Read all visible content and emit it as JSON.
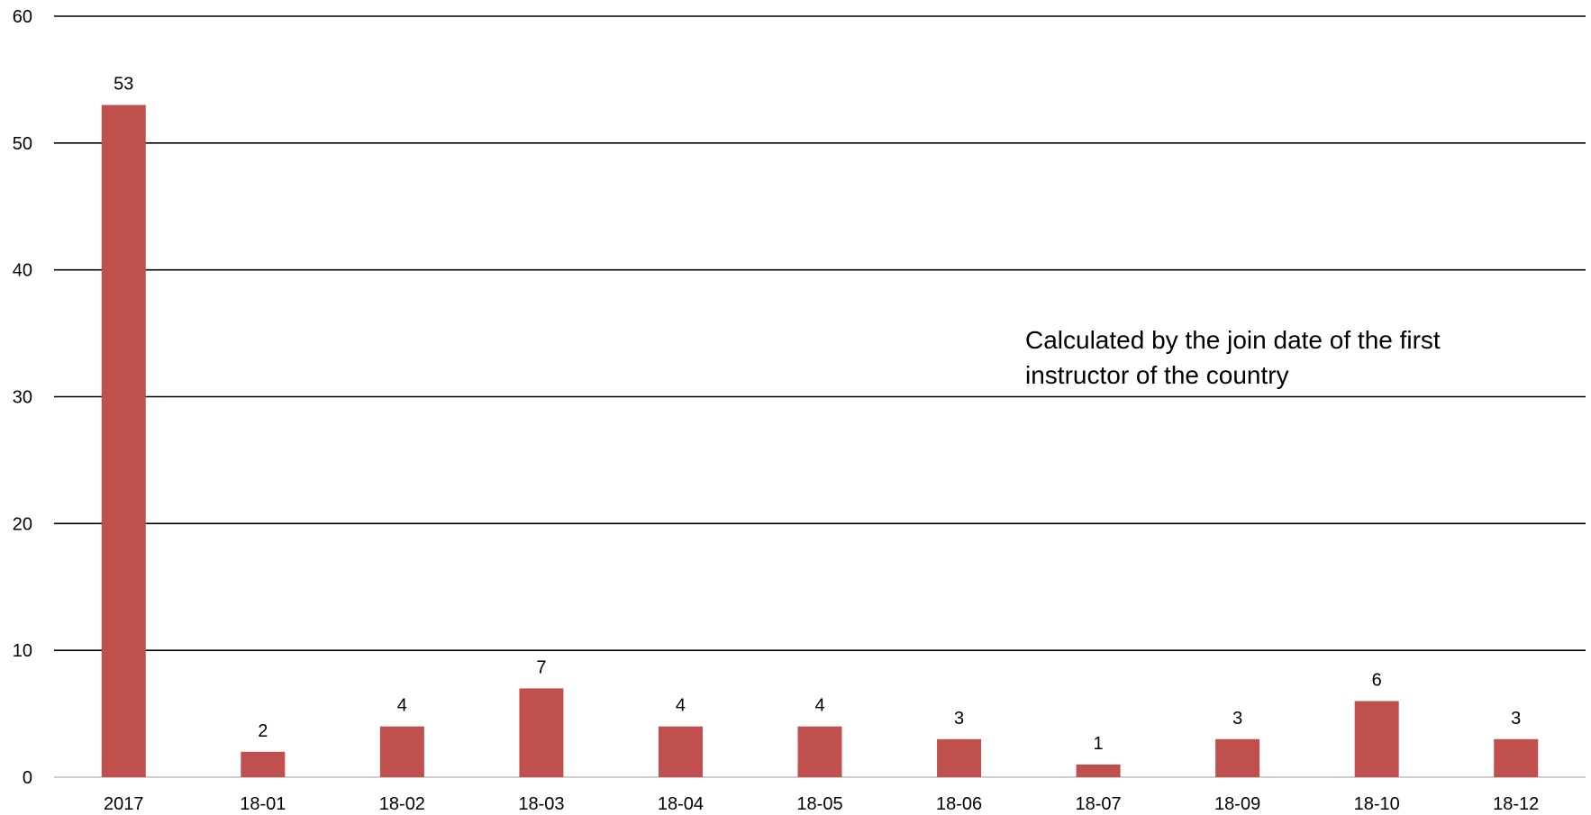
{
  "chart_data": {
    "type": "bar",
    "categories": [
      "2017",
      "18-01",
      "18-02",
      "18-03",
      "18-04",
      "18-05",
      "18-06",
      "18-07",
      "18-09",
      "18-10",
      "18-12"
    ],
    "values": [
      53,
      2,
      4,
      7,
      4,
      4,
      3,
      1,
      3,
      6,
      3
    ],
    "ylim": [
      0,
      60
    ],
    "yticks": [
      0,
      10,
      20,
      30,
      40,
      50,
      60
    ],
    "grid": true,
    "data_labels": true,
    "title": "",
    "xlabel": "",
    "ylabel": "",
    "bar_color": "#c0504d",
    "annotation": "Calculated by the join date of the first instructor of the country"
  }
}
